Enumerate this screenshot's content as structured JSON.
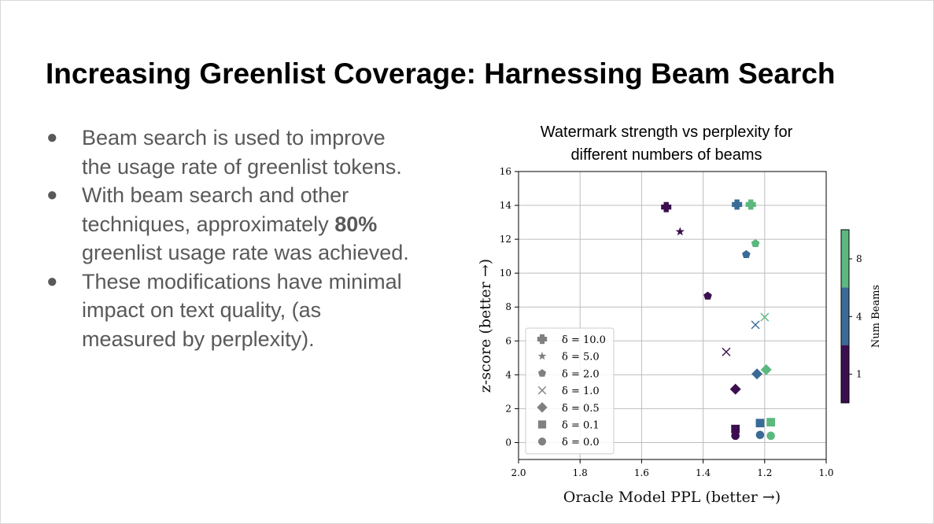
{
  "slide": {
    "title": "Increasing Greenlist Coverage: Harnessing Beam Search",
    "bullets": [
      {
        "parts": [
          "Beam search is used to improve the usage rate of greenlist tokens."
        ]
      },
      {
        "parts": [
          "With beam search and other techniques, approximately ",
          "80%",
          " greenlist usage rate was achieved."
        ]
      },
      {
        "parts": [
          "These modifications have minimal impact on text quality, (as measured by perplexity)."
        ]
      }
    ]
  },
  "chart_data": {
    "type": "scatter",
    "title": [
      "Watermark strength vs perplexity for",
      "different numbers of beams"
    ],
    "xlabel": "Oracle Model PPL (better →)",
    "ylabel": "z-score (better →)",
    "xlim": [
      2.0,
      1.0
    ],
    "ylim": [
      -1,
      16
    ],
    "x_ticks": [
      "2.0",
      "1.8",
      "1.6",
      "1.4",
      "1.2",
      "1.0"
    ],
    "y_ticks": [
      "0",
      "2",
      "4",
      "6",
      "8",
      "10",
      "12",
      "14",
      "16"
    ],
    "grid": true,
    "legend_position": "lower-left",
    "legend": [
      {
        "marker": "plus",
        "label": "δ = 10.0"
      },
      {
        "marker": "star",
        "label": "δ = 5.0"
      },
      {
        "marker": "pentagon",
        "label": "δ = 2.0"
      },
      {
        "marker": "x",
        "label": "δ = 1.0"
      },
      {
        "marker": "diamond",
        "label": "δ = 0.5"
      },
      {
        "marker": "square",
        "label": "δ = 0.1"
      },
      {
        "marker": "circle",
        "label": "δ = 0.0"
      }
    ],
    "colorbar": {
      "label": "Num Beams",
      "ticks": [
        "1",
        "4",
        "8"
      ],
      "colors": {
        "1": "#3b0f4f",
        "4": "#3a6b96",
        "8": "#5cb87e"
      }
    },
    "series": [
      {
        "delta": "10.0",
        "marker": "plus",
        "points": [
          {
            "x": 1.52,
            "y": 13.9,
            "beams": "1"
          },
          {
            "x": 1.29,
            "y": 14.05,
            "beams": "4"
          },
          {
            "x": 1.245,
            "y": 14.05,
            "beams": "8"
          }
        ]
      },
      {
        "delta": "5.0",
        "marker": "star",
        "points": [
          {
            "x": 1.475,
            "y": 12.45,
            "beams": "1"
          }
        ]
      },
      {
        "delta": "2.0",
        "marker": "pentagon",
        "points": [
          {
            "x": 1.385,
            "y": 8.65,
            "beams": "1"
          },
          {
            "x": 1.26,
            "y": 11.1,
            "beams": "4"
          },
          {
            "x": 1.23,
            "y": 11.75,
            "beams": "8"
          }
        ]
      },
      {
        "delta": "1.0",
        "marker": "x",
        "points": [
          {
            "x": 1.325,
            "y": 5.35,
            "beams": "1"
          },
          {
            "x": 1.23,
            "y": 6.95,
            "beams": "4"
          },
          {
            "x": 1.2,
            "y": 7.4,
            "beams": "8"
          }
        ]
      },
      {
        "delta": "0.5",
        "marker": "diamond",
        "points": [
          {
            "x": 1.295,
            "y": 3.15,
            "beams": "1"
          },
          {
            "x": 1.225,
            "y": 4.05,
            "beams": "4"
          },
          {
            "x": 1.195,
            "y": 4.3,
            "beams": "8"
          }
        ]
      },
      {
        "delta": "0.1",
        "marker": "square",
        "points": [
          {
            "x": 1.295,
            "y": 0.8,
            "beams": "1"
          },
          {
            "x": 1.215,
            "y": 1.15,
            "beams": "4"
          },
          {
            "x": 1.18,
            "y": 1.2,
            "beams": "8"
          }
        ]
      },
      {
        "delta": "0.0",
        "marker": "circle",
        "points": [
          {
            "x": 1.295,
            "y": 0.4,
            "beams": "1"
          },
          {
            "x": 1.215,
            "y": 0.45,
            "beams": "4"
          },
          {
            "x": 1.18,
            "y": 0.4,
            "beams": "8"
          }
        ]
      }
    ]
  }
}
